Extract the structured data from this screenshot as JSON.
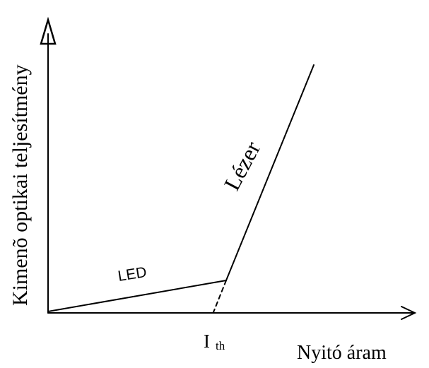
{
  "diagram": {
    "y_axis_label": "Kimenõ optikai teljesítmény",
    "x_axis_label": "Nyitó áram",
    "threshold_label_main": "I",
    "threshold_label_sub": "th",
    "led_label": "LED",
    "laser_label": "Lézer"
  }
}
